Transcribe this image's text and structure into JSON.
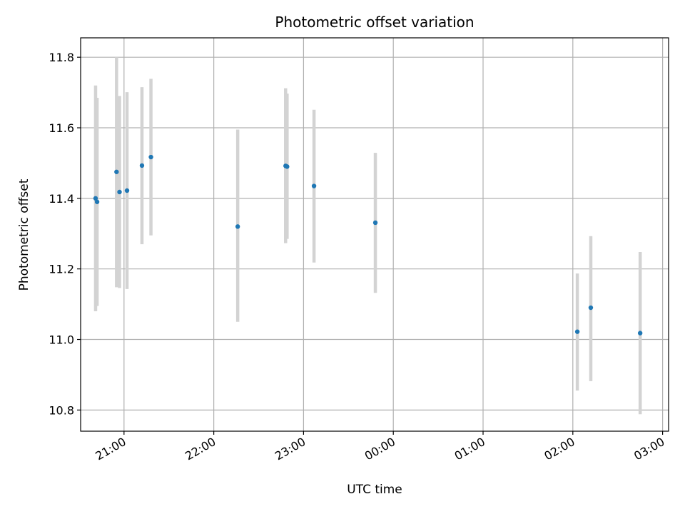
{
  "chart_data": {
    "type": "scatter",
    "title": "Photometric offset variation",
    "xlabel": "UTC time",
    "ylabel": "Photometric offset",
    "grid": true,
    "x_axis": {
      "kind": "time",
      "range": [
        "20:31",
        "03:04"
      ],
      "ticks": [
        "21:00",
        "22:00",
        "23:00",
        "00:00",
        "01:00",
        "02:00",
        "03:00"
      ]
    },
    "y_axis": {
      "range": [
        10.74,
        11.855
      ],
      "ticks": [
        "10.8",
        "11.0",
        "11.2",
        "11.4",
        "11.6",
        "11.8"
      ]
    },
    "colors": {
      "points": "#1f77b4",
      "error_bars": "#d3d3d3",
      "grid": "#b0b0b0"
    },
    "points": [
      {
        "x": "20:41",
        "y": 11.4,
        "y_low": 11.08,
        "y_high": 11.72
      },
      {
        "x": "20:42",
        "y": 11.39,
        "y_low": 11.095,
        "y_high": 11.685
      },
      {
        "x": "20:55",
        "y": 11.475,
        "y_low": 11.148,
        "y_high": 11.8
      },
      {
        "x": "20:57",
        "y": 11.418,
        "y_low": 11.146,
        "y_high": 11.69
      },
      {
        "x": "21:02",
        "y": 11.422,
        "y_low": 11.143,
        "y_high": 11.701
      },
      {
        "x": "21:12",
        "y": 11.493,
        "y_low": 11.27,
        "y_high": 11.715
      },
      {
        "x": "21:18",
        "y": 11.517,
        "y_low": 11.295,
        "y_high": 11.739
      },
      {
        "x": "22:16",
        "y": 11.32,
        "y_low": 11.05,
        "y_high": 11.595
      },
      {
        "x": "22:48",
        "y": 11.492,
        "y_low": 11.273,
        "y_high": 11.712
      },
      {
        "x": "22:49",
        "y": 11.49,
        "y_low": 11.285,
        "y_high": 11.697
      },
      {
        "x": "23:07",
        "y": 11.435,
        "y_low": 11.218,
        "y_high": 11.651
      },
      {
        "x": "23:48",
        "y": 11.331,
        "y_low": 11.132,
        "y_high": 11.529
      },
      {
        "x": "02:03",
        "y": 11.022,
        "y_low": 10.855,
        "y_high": 11.187
      },
      {
        "x": "02:12",
        "y": 11.09,
        "y_low": 10.882,
        "y_high": 11.293
      },
      {
        "x": "02:45",
        "y": 11.018,
        "y_low": 10.788,
        "y_high": 11.248
      }
    ]
  }
}
